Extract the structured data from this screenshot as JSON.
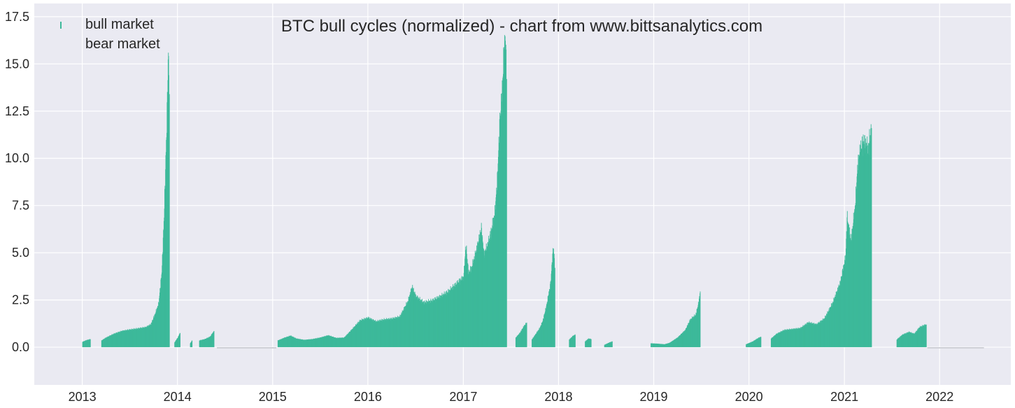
{
  "chart_data": {
    "type": "bar",
    "title": "BTC bull cycles (normalized)  - chart from www.bittsanalytics.com",
    "xlabel": "",
    "ylabel": "",
    "x_axis_type": "date",
    "xlim": [
      "2012-07-01",
      "2022-10-01"
    ],
    "ylim": [
      -2.0,
      18.2
    ],
    "x_ticks": [
      "2013",
      "2014",
      "2015",
      "2016",
      "2017",
      "2018",
      "2019",
      "2020",
      "2021",
      "2022"
    ],
    "y_ticks": [
      "0.0",
      "2.5",
      "5.0",
      "7.5",
      "10.0",
      "12.5",
      "15.0",
      "17.5"
    ],
    "y_tick_values": [
      0,
      2.5,
      5.0,
      7.5,
      10.0,
      12.5,
      15.0,
      17.5
    ],
    "grid": true,
    "legend_position": "top-left",
    "series": [
      {
        "name": "bull market",
        "color": "#3db99a",
        "segments": [
          {
            "points": [
              [
                "2013-01-01",
                0.28
              ],
              [
                "2013-01-15",
                0.36
              ],
              [
                "2013-01-31",
                0.42
              ]
            ]
          },
          {
            "points": [
              [
                "2013-03-15",
                0.35
              ],
              [
                "2013-04-01",
                0.5
              ],
              [
                "2013-05-01",
                0.7
              ],
              [
                "2013-06-01",
                0.85
              ],
              [
                "2013-07-01",
                0.92
              ],
              [
                "2013-08-01",
                0.98
              ],
              [
                "2013-09-01",
                1.05
              ],
              [
                "2013-09-20",
                1.2
              ],
              [
                "2013-10-05",
                1.7
              ],
              [
                "2013-10-20",
                2.3
              ],
              [
                "2013-11-01",
                4.0
              ],
              [
                "2013-11-10",
                7.0
              ],
              [
                "2013-11-20",
                11.8
              ],
              [
                "2013-11-26",
                15.6
              ],
              [
                "2013-11-30",
                13.4
              ]
            ]
          },
          {
            "points": [
              [
                "2013-12-20",
                0.25
              ],
              [
                "2014-01-01",
                0.5
              ],
              [
                "2014-01-10",
                0.75
              ]
            ]
          },
          {
            "points": [
              [
                "2014-02-18",
                0.2
              ],
              [
                "2014-02-25",
                0.35
              ]
            ]
          },
          {
            "points": [
              [
                "2014-03-25",
                0.35
              ],
              [
                "2014-04-15",
                0.42
              ],
              [
                "2014-05-05",
                0.55
              ],
              [
                "2014-05-20",
                0.85
              ]
            ]
          },
          {
            "points": [
              [
                "2015-01-20",
                0.35
              ],
              [
                "2015-02-15",
                0.5
              ],
              [
                "2015-03-10",
                0.6
              ],
              [
                "2015-04-01",
                0.45
              ],
              [
                "2015-05-01",
                0.38
              ],
              [
                "2015-06-01",
                0.42
              ],
              [
                "2015-07-01",
                0.5
              ],
              [
                "2015-08-01",
                0.62
              ],
              [
                "2015-09-01",
                0.48
              ],
              [
                "2015-10-01",
                0.5
              ],
              [
                "2015-11-01",
                0.95
              ],
              [
                "2015-12-01",
                1.4
              ],
              [
                "2016-01-01",
                1.55
              ],
              [
                "2016-02-01",
                1.35
              ],
              [
                "2016-03-01",
                1.45
              ],
              [
                "2016-04-01",
                1.5
              ],
              [
                "2016-05-01",
                1.6
              ],
              [
                "2016-06-01",
                2.4
              ],
              [
                "2016-06-18",
                3.2
              ],
              [
                "2016-07-01",
                2.7
              ],
              [
                "2016-08-01",
                2.35
              ],
              [
                "2016-09-01",
                2.45
              ],
              [
                "2016-10-01",
                2.65
              ],
              [
                "2016-11-01",
                2.9
              ],
              [
                "2016-12-01",
                3.3
              ],
              [
                "2017-01-01",
                3.7
              ],
              [
                "2017-01-10",
                5.4
              ],
              [
                "2017-01-20",
                3.9
              ],
              [
                "2017-02-01",
                4.2
              ],
              [
                "2017-02-15",
                4.9
              ],
              [
                "2017-03-01",
                5.7
              ],
              [
                "2017-03-10",
                6.3
              ],
              [
                "2017-03-20",
                4.9
              ],
              [
                "2017-04-01",
                5.3
              ],
              [
                "2017-04-15",
                6.0
              ],
              [
                "2017-05-01",
                7.1
              ],
              [
                "2017-05-10",
                8.8
              ],
              [
                "2017-05-20",
                12.0
              ],
              [
                "2017-05-28",
                13.3
              ],
              [
                "2017-06-05",
                15.8
              ],
              [
                "2017-06-10",
                16.4
              ],
              [
                "2017-06-15",
                14.2
              ]
            ]
          },
          {
            "points": [
              [
                "2017-07-20",
                0.5
              ],
              [
                "2017-08-05",
                0.75
              ],
              [
                "2017-08-20",
                1.1
              ],
              [
                "2017-08-31",
                1.3
              ]
            ]
          },
          {
            "points": [
              [
                "2017-09-20",
                0.4
              ],
              [
                "2017-10-05",
                0.7
              ],
              [
                "2017-10-20",
                1.0
              ],
              [
                "2017-11-01",
                1.4
              ],
              [
                "2017-11-15",
                2.2
              ],
              [
                "2017-12-01",
                3.4
              ],
              [
                "2017-12-08",
                4.9
              ],
              [
                "2017-12-12",
                5.2
              ],
              [
                "2017-12-17",
                4.2
              ]
            ]
          },
          {
            "points": [
              [
                "2018-02-10",
                0.4
              ],
              [
                "2018-02-25",
                0.6
              ],
              [
                "2018-03-05",
                0.65
              ]
            ]
          },
          {
            "points": [
              [
                "2018-04-12",
                0.3
              ],
              [
                "2018-04-25",
                0.45
              ],
              [
                "2018-05-05",
                0.42
              ]
            ]
          },
          {
            "points": [
              [
                "2018-06-25",
                0.12
              ],
              [
                "2018-07-15",
                0.25
              ],
              [
                "2018-07-25",
                0.3
              ]
            ]
          },
          {
            "points": [
              [
                "2018-12-20",
                0.2
              ],
              [
                "2019-01-15",
                0.18
              ],
              [
                "2019-02-10",
                0.15
              ],
              [
                "2019-03-01",
                0.22
              ],
              [
                "2019-04-01",
                0.5
              ],
              [
                "2019-05-01",
                0.9
              ],
              [
                "2019-05-20",
                1.45
              ],
              [
                "2019-06-10",
                1.7
              ],
              [
                "2019-06-22",
                2.4
              ],
              [
                "2019-06-27",
                2.95
              ]
            ]
          },
          {
            "points": [
              [
                "2019-12-20",
                0.15
              ],
              [
                "2020-01-15",
                0.3
              ],
              [
                "2020-02-01",
                0.45
              ],
              [
                "2020-02-15",
                0.55
              ]
            ]
          },
          {
            "points": [
              [
                "2020-03-25",
                0.45
              ],
              [
                "2020-04-15",
                0.7
              ],
              [
                "2020-05-15",
                0.9
              ],
              [
                "2020-06-15",
                0.95
              ],
              [
                "2020-07-15",
                1.0
              ],
              [
                "2020-08-15",
                1.3
              ],
              [
                "2020-09-15",
                1.2
              ],
              [
                "2020-10-15",
                1.5
              ],
              [
                "2020-11-15",
                2.3
              ],
              [
                "2020-12-15",
                3.4
              ],
              [
                "2021-01-05",
                4.8
              ],
              [
                "2021-01-10",
                6.9
              ],
              [
                "2021-01-25",
                5.6
              ],
              [
                "2021-02-10",
                7.4
              ],
              [
                "2021-02-20",
                9.6
              ],
              [
                "2021-03-01",
                10.4
              ],
              [
                "2021-03-15",
                10.9
              ],
              [
                "2021-04-01",
                10.5
              ],
              [
                "2021-04-14",
                11.6
              ]
            ]
          },
          {
            "points": [
              [
                "2021-07-20",
                0.4
              ],
              [
                "2021-08-10",
                0.65
              ],
              [
                "2021-09-05",
                0.8
              ],
              [
                "2021-09-25",
                0.7
              ],
              [
                "2021-10-15",
                1.05
              ],
              [
                "2021-11-10",
                1.2
              ]
            ]
          }
        ]
      },
      {
        "name": "bear market",
        "color": "#cfd0d6",
        "segments": [
          {
            "points": [
              [
                "2014-06-01",
                -0.05
              ],
              [
                "2015-01-15",
                -0.05
              ]
            ]
          },
          {
            "points": [
              [
                "2021-11-15",
                -0.05
              ],
              [
                "2022-06-20",
                -0.05
              ]
            ]
          }
        ]
      }
    ]
  }
}
